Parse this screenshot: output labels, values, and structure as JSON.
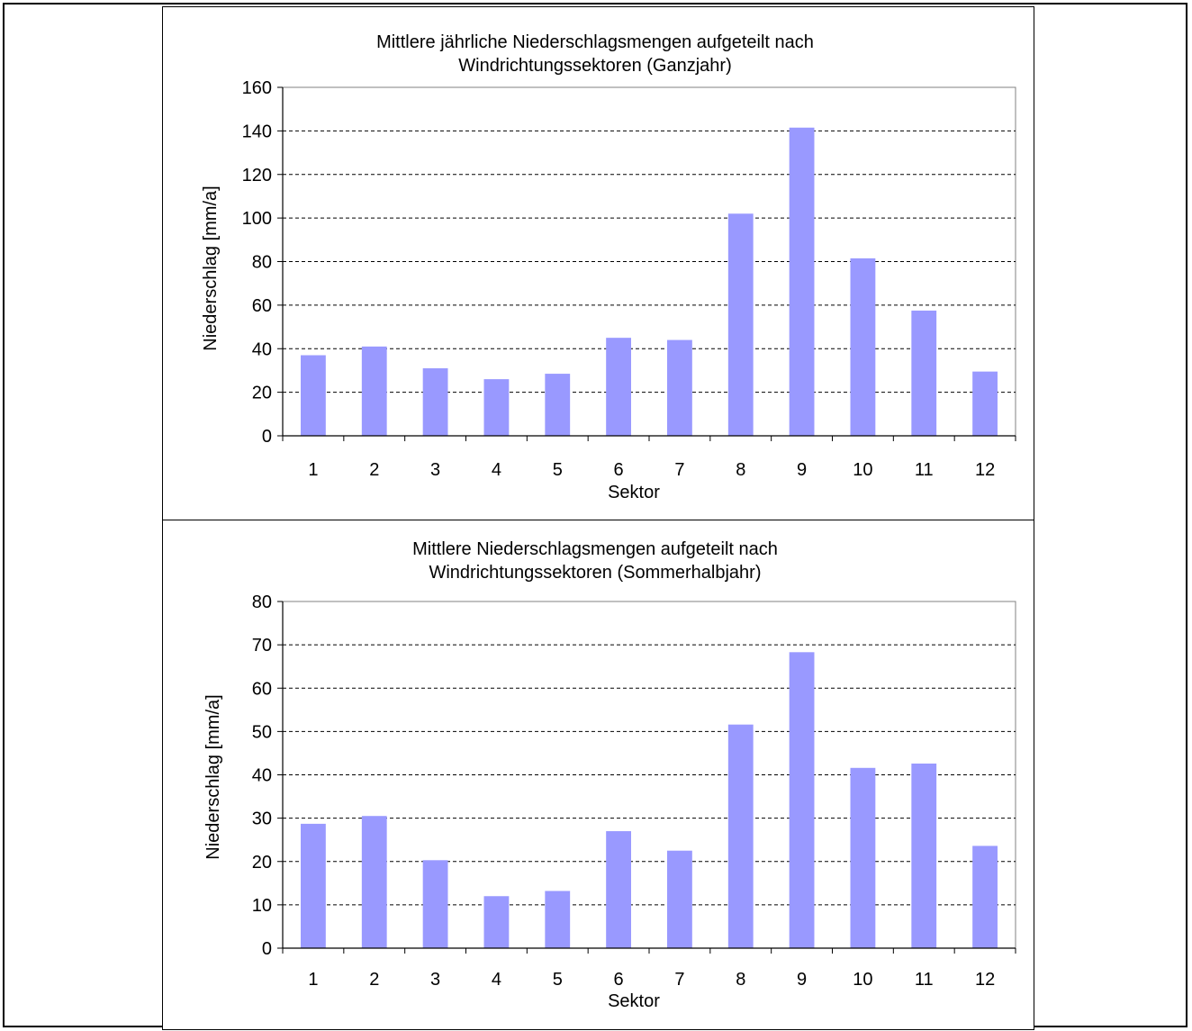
{
  "chart_data": [
    {
      "type": "bar",
      "title": [
        "Mittlere jährliche Niederschlagsmengen aufgeteilt nach",
        "Windrichtungssektoren (Ganzjahr)"
      ],
      "xlabel": "Sektor",
      "ylabel": "Niederschlag [mm/a]",
      "categories": [
        "1",
        "2",
        "3",
        "4",
        "5",
        "6",
        "7",
        "8",
        "9",
        "10",
        "11",
        "12"
      ],
      "values": [
        37,
        41,
        31,
        26,
        28.5,
        45,
        44,
        102,
        141.5,
        81.5,
        57.5,
        29.5
      ],
      "ylim": [
        0,
        160
      ],
      "yticks": [
        0,
        20,
        40,
        60,
        80,
        100,
        120,
        140,
        160
      ],
      "bar_color": "#9999ff",
      "grid": "horizontal dashed"
    },
    {
      "type": "bar",
      "title": [
        "Mittlere Niederschlagsmengen aufgeteilt nach",
        "Windrichtungssektoren (Sommerhalbjahr)"
      ],
      "xlabel": "Sektor",
      "ylabel": "Niederschlag [mm/a]",
      "categories": [
        "1",
        "2",
        "3",
        "4",
        "5",
        "6",
        "7",
        "8",
        "9",
        "10",
        "11",
        "12"
      ],
      "values": [
        28.7,
        30.5,
        20.3,
        12,
        13.2,
        27,
        22.5,
        51.6,
        68.3,
        41.6,
        42.6,
        23.6
      ],
      "ylim": [
        0,
        80
      ],
      "yticks": [
        0,
        10,
        20,
        30,
        40,
        50,
        60,
        70,
        80
      ],
      "bar_color": "#9999ff",
      "grid": "horizontal dashed"
    }
  ]
}
